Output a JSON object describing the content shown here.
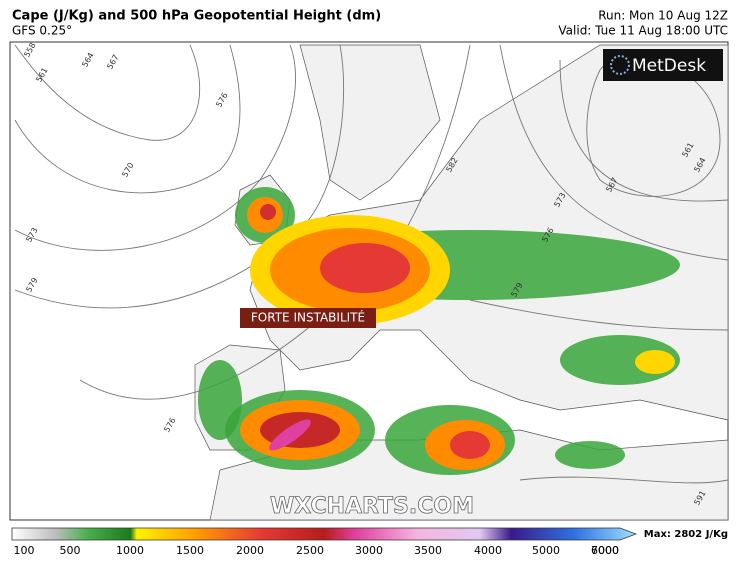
{
  "header": {
    "title": "Cape (J/Kg) and 500 hPa Geopotential Height (dm)",
    "subtitle": "GFS 0.25°",
    "run": "Run: Mon 10 Aug 12Z",
    "valid": "Valid: Tue 11 Aug 18:00 UTC"
  },
  "logo": "MetDesk",
  "annotation": "FORTE INSTABILITÉ",
  "watermark": "WXCHARTS.COM",
  "colorbar": {
    "labels": [
      "100",
      "500",
      "1000",
      "1500",
      "2000",
      "2500",
      "3000",
      "3500",
      "4000",
      "5000",
      "6000",
      "7000"
    ],
    "max": "Max: 2802 J/Kg"
  },
  "contour_labels": [
    "558",
    "561",
    "564",
    "567",
    "570",
    "573",
    "579",
    "576",
    "576",
    "582",
    "573",
    "567",
    "561",
    "564",
    "576",
    "579",
    "591"
  ]
}
